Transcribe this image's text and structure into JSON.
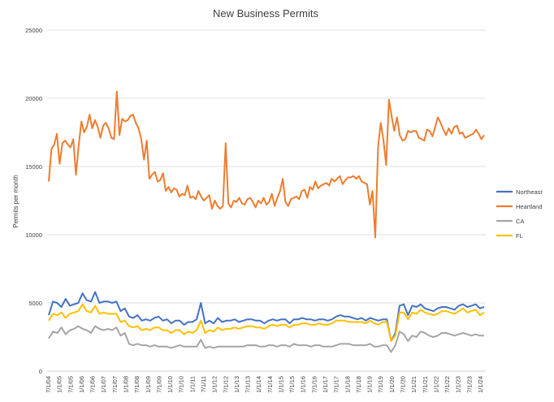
{
  "chart_data": {
    "type": "line",
    "title": "New Business Permits",
    "xlabel": "",
    "ylabel": "Permits per month",
    "ylim": [
      0,
      25000
    ],
    "yticks": [
      0,
      5000,
      10000,
      15000,
      20000,
      25000
    ],
    "xticks": [
      "7/1/04",
      "1/1/05",
      "7/1/05",
      "1/1/06",
      "7/1/06",
      "1/1/07",
      "7/1/07",
      "1/1/08",
      "7/1/08",
      "1/1/09",
      "7/1/09",
      "1/1/10",
      "7/1/10",
      "1/1/11",
      "7/1/11",
      "1/1/12",
      "7/1/12",
      "1/1/13",
      "7/1/13",
      "1/1/14",
      "7/1/14",
      "1/1/15",
      "7/1/15",
      "1/1/16",
      "7/1/16",
      "1/1/17",
      "7/1/17",
      "1/1/18",
      "7/1/18",
      "1/1/19",
      "7/1/19",
      "1/1/20",
      "7/1/20",
      "1/1/21",
      "7/1/21",
      "1/1/22",
      "7/1/22",
      "1/1/23",
      "7/1/23",
      "1/1/24"
    ],
    "grid": true,
    "legend": "right",
    "series": [
      {
        "name": "Northeast",
        "color": "#4472C4",
        "values": [
          4100,
          5100,
          5000,
          4700,
          5300,
          4800,
          4900,
          5000,
          5700,
          5200,
          5100,
          5800,
          5000,
          5100,
          5100,
          5000,
          5100,
          4400,
          4600,
          4000,
          3900,
          4100,
          3700,
          3800,
          3700,
          3900,
          4000,
          3700,
          3800,
          3500,
          3700,
          3700,
          3400,
          3600,
          3600,
          3800,
          5000,
          3500,
          3700,
          3500,
          3900,
          3600,
          3700,
          3700,
          3800,
          3600,
          3700,
          3800,
          3800,
          3700,
          3700,
          3500,
          3700,
          3800,
          3700,
          3800,
          3800,
          3500,
          3800,
          3800,
          3900,
          3800,
          3800,
          3700,
          3800,
          3800,
          3700,
          3800,
          4000,
          4100,
          4000,
          4000,
          3900,
          3800,
          3900,
          3700,
          3900,
          3800,
          3700,
          3800,
          3800,
          2200,
          2800,
          4800,
          4900,
          4100,
          4800,
          4700,
          4900,
          4600,
          4500,
          4400,
          4600,
          4700,
          4700,
          4600,
          4500,
          4800,
          4900,
          4700,
          4800,
          4900,
          4600,
          4700
        ]
      },
      {
        "name": "Heartland",
        "color": "#ED7D31",
        "values": [
          13900,
          16300,
          16600,
          17400,
          15200,
          16700,
          16900,
          16600,
          16400,
          17000,
          14400,
          16500,
          18300,
          17500,
          17900,
          18800,
          17800,
          18400,
          17900,
          17100,
          18000,
          18200,
          17800,
          17100,
          17000,
          20500,
          17300,
          18500,
          18300,
          18400,
          18700,
          18800,
          18200,
          17800,
          17000,
          15500,
          16900,
          14100,
          14400,
          14600,
          13900,
          14000,
          14500,
          13200,
          13500,
          13100,
          13400,
          13300,
          12800,
          13000,
          12900,
          13600,
          12700,
          12800,
          12600,
          13200,
          12800,
          12500,
          12700,
          12900,
          11900,
          12500,
          12100,
          11900,
          12100,
          16700,
          12300,
          12000,
          12500,
          12400,
          12700,
          12300,
          12200,
          12600,
          12700,
          12400,
          12000,
          12500,
          12300,
          12700,
          12200,
          12400,
          13000,
          12100,
          12700,
          13200,
          14100,
          12400,
          12100,
          12600,
          12700,
          12800,
          12600,
          13200,
          13300,
          12700,
          13500,
          13300,
          13900,
          13400,
          13600,
          13700,
          13800,
          13600,
          14100,
          13900,
          14100,
          14300,
          13700,
          14000,
          14200,
          14200,
          14300,
          14100,
          14300,
          13900,
          13800,
          13700,
          12200,
          13200,
          9800,
          16400,
          18200,
          16900,
          15100,
          19900,
          18700,
          17600,
          18600,
          17300,
          16900,
          17000,
          17600,
          17500,
          17600,
          17600,
          17100,
          17000,
          16900,
          17700,
          17600,
          17200,
          17900,
          18600,
          18200,
          17700,
          17300,
          17800,
          17400,
          17900,
          18000,
          17400,
          17500,
          17100,
          17200,
          17300,
          17400,
          17700,
          17400,
          17000,
          17300
        ]
      },
      {
        "name": "CA",
        "color": "#A5A5A5",
        "values": [
          2400,
          2900,
          2800,
          3200,
          2700,
          3000,
          3100,
          3300,
          3100,
          3000,
          2800,
          3300,
          3100,
          3000,
          3100,
          3000,
          3200,
          2600,
          2800,
          2000,
          1900,
          2000,
          1900,
          1900,
          1800,
          1900,
          1800,
          1800,
          1800,
          1700,
          1800,
          1900,
          1800,
          1800,
          1800,
          1800,
          2300,
          1700,
          1800,
          1700,
          1800,
          1800,
          1800,
          1800,
          1800,
          1800,
          1800,
          1900,
          1900,
          1900,
          1800,
          1800,
          1900,
          1900,
          1800,
          1900,
          1900,
          1800,
          2000,
          1900,
          1900,
          1900,
          1800,
          1900,
          1900,
          1800,
          1800,
          1800,
          1900,
          2000,
          2000,
          2000,
          1900,
          1900,
          1900,
          1900,
          2000,
          1800,
          1800,
          1900,
          1900,
          1400,
          1900,
          2900,
          2700,
          2200,
          2600,
          2500,
          2900,
          2800,
          2600,
          2500,
          2600,
          2800,
          2800,
          2700,
          2600,
          2700,
          2800,
          2700,
          2600,
          2700,
          2600,
          2600
        ]
      },
      {
        "name": "FL",
        "color": "#FFC000",
        "values": [
          3700,
          4200,
          4100,
          4300,
          3900,
          4200,
          4300,
          4400,
          4900,
          4400,
          4300,
          4800,
          4200,
          4300,
          4200,
          4200,
          4200,
          3600,
          3700,
          3300,
          3200,
          3300,
          3000,
          3100,
          3000,
          3200,
          3200,
          3000,
          3000,
          2800,
          3000,
          3000,
          2700,
          2900,
          2800,
          3000,
          3700,
          2800,
          3000,
          2900,
          3200,
          3000,
          3100,
          3100,
          3200,
          3100,
          3200,
          3300,
          3300,
          3200,
          3200,
          3100,
          3300,
          3400,
          3300,
          3400,
          3400,
          3200,
          3400,
          3400,
          3500,
          3500,
          3400,
          3400,
          3500,
          3400,
          3400,
          3500,
          3700,
          3700,
          3700,
          3600,
          3600,
          3600,
          3600,
          3500,
          3700,
          3500,
          3400,
          3600,
          3600,
          2200,
          2600,
          4300,
          4300,
          3800,
          4300,
          4200,
          4500,
          4300,
          4200,
          4100,
          4200,
          4400,
          4400,
          4300,
          4200,
          4400,
          4600,
          4300,
          4400,
          4500,
          4100,
          4300
        ]
      }
    ]
  }
}
